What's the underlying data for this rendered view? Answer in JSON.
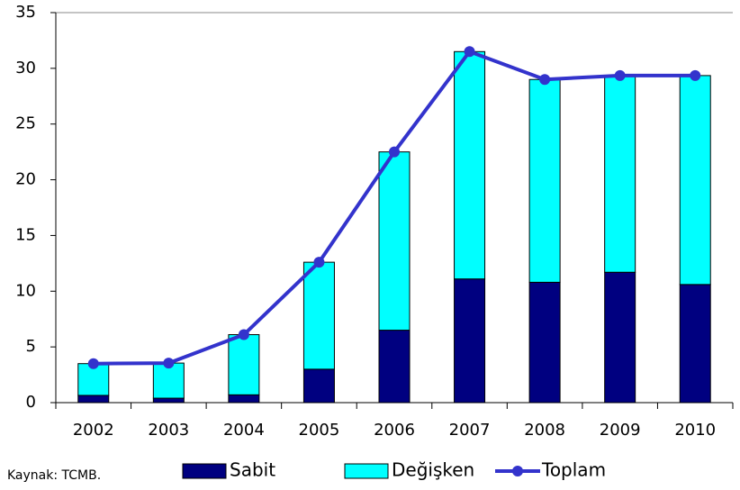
{
  "chart_data": {
    "type": "bar",
    "categories": [
      "2002",
      "2003",
      "2004",
      "2005",
      "2006",
      "2007",
      "2008",
      "2009",
      "2010"
    ],
    "series": [
      {
        "name": "Sabit",
        "color": "#000080",
        "stack": true,
        "values": [
          0.65,
          0.4,
          0.7,
          3.0,
          6.5,
          11.1,
          10.8,
          11.7,
          10.6
        ]
      },
      {
        "name": "Değişken",
        "color": "#00ffff",
        "stack": true,
        "values": [
          2.85,
          3.15,
          5.4,
          9.6,
          16.0,
          20.4,
          18.2,
          17.65,
          18.75
        ]
      },
      {
        "name": "Toplam",
        "color": "#3333cc",
        "type": "line",
        "values": [
          3.5,
          3.55,
          6.1,
          12.6,
          22.5,
          31.5,
          29.0,
          29.35,
          29.35
        ]
      }
    ],
    "ylim": [
      0,
      35
    ],
    "yticks": [
      0,
      5,
      10,
      15,
      20,
      25,
      30,
      35
    ],
    "source": "Kaynak: TCMB."
  }
}
